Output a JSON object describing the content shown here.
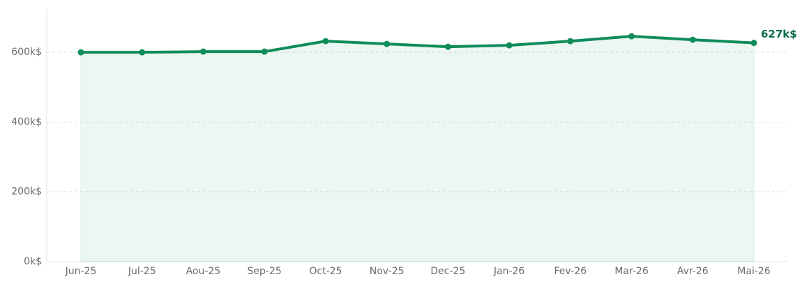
{
  "chart_data": {
    "type": "line",
    "categories": [
      "Jun-25",
      "Jul-25",
      "Aou-25",
      "Sep-25",
      "Oct-25",
      "Nov-25",
      "Dec-25",
      "Jan-26",
      "Fev-26",
      "Mar-26",
      "Avr-26",
      "Mai-26"
    ],
    "values": [
      600,
      600,
      602,
      602,
      632,
      624,
      616,
      620,
      632,
      646,
      636,
      627
    ],
    "value_labels": [
      null,
      null,
      null,
      null,
      null,
      null,
      null,
      null,
      null,
      null,
      null,
      "627k$"
    ],
    "color": "#0e8c5a",
    "area": true,
    "ylim": [
      0,
      720
    ],
    "yticks": [
      {
        "value": 0,
        "label": "0k$"
      },
      {
        "value": 200,
        "label": "200k$"
      },
      {
        "value": 400,
        "label": "400k$"
      },
      {
        "value": 600,
        "label": "600k$"
      }
    ],
    "grid": true
  }
}
